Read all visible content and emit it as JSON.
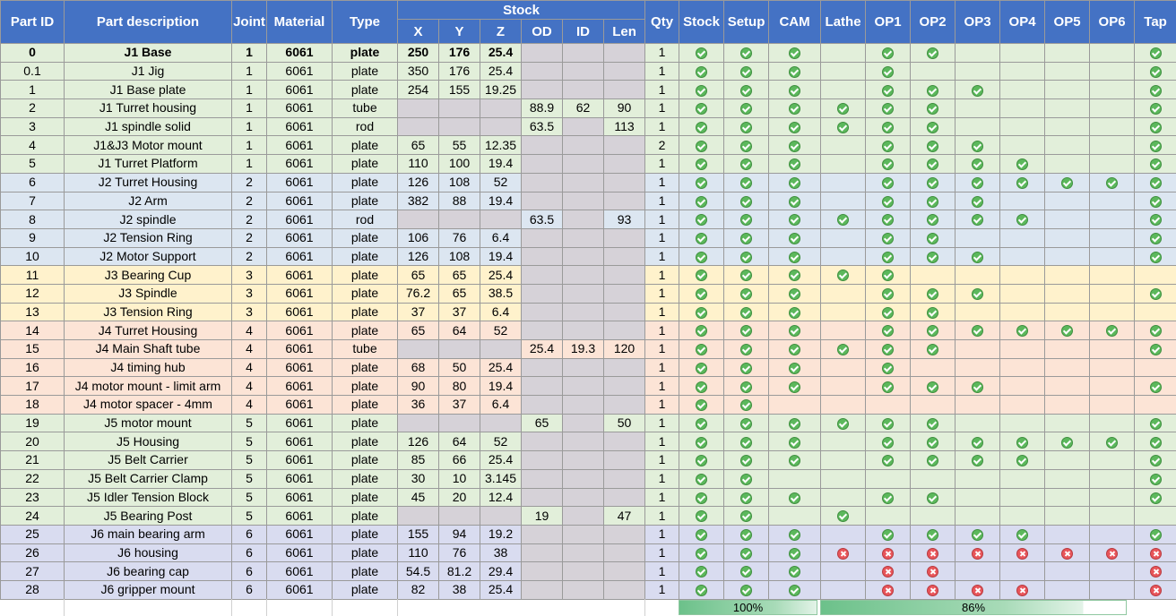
{
  "headers": {
    "part_id": "Part ID",
    "part_description": "Part description",
    "joint": "Joint",
    "material": "Material",
    "type": "Type",
    "stock_group": "Stock",
    "x": "X",
    "y": "Y",
    "z": "Z",
    "od": "OD",
    "id": "ID",
    "len": "Len",
    "qty": "Qty",
    "status_cols": [
      "Stock",
      "Setup",
      "CAM",
      "Lathe",
      "OP1",
      "OP2",
      "OP3",
      "OP4",
      "OP5",
      "OP6",
      "Tap"
    ]
  },
  "colors": {
    "header": "#4472c4",
    "joint1": "#e2efda",
    "joint2": "#dce6f1",
    "joint3": "#fff2cc",
    "joint4": "#fce4d6",
    "joint5": "#e2efda",
    "joint6": "#d9dcf0",
    "stock_missing": "#d6d2d8",
    "check_ok": "#5cb85c",
    "check_bad": "#e8555a"
  },
  "rows": [
    {
      "id": "0",
      "desc": "J1 Base",
      "joint": "1",
      "mat": "6061",
      "type": "plate",
      "x": "250",
      "y": "176",
      "z": "25.4",
      "od": "",
      "idv": "",
      "len": "",
      "qty": "1",
      "s": "ooo_oo____o",
      "bold": true
    },
    {
      "id": "0.1",
      "desc": "J1 Jig",
      "joint": "1",
      "mat": "6061",
      "type": "plate",
      "x": "350",
      "y": "176",
      "z": "25.4",
      "od": "",
      "idv": "",
      "len": "",
      "qty": "1",
      "s": "ooo_o_____o"
    },
    {
      "id": "1",
      "desc": "J1 Base plate",
      "joint": "1",
      "mat": "6061",
      "type": "plate",
      "x": "254",
      "y": "155",
      "z": "19.25",
      "od": "",
      "idv": "",
      "len": "",
      "qty": "1",
      "s": "ooo_ooo___o"
    },
    {
      "id": "2",
      "desc": "J1 Turret housing",
      "joint": "1",
      "mat": "6061",
      "type": "tube",
      "x": "",
      "y": "",
      "z": "",
      "od": "88.9",
      "idv": "62",
      "len": "90",
      "qty": "1",
      "s": "oooooo____o"
    },
    {
      "id": "3",
      "desc": "J1 spindle solid",
      "joint": "1",
      "mat": "6061",
      "type": "rod",
      "x": "",
      "y": "",
      "z": "",
      "od": "63.5",
      "idv": "",
      "len": "113",
      "qty": "1",
      "s": "oooooo____o"
    },
    {
      "id": "4",
      "desc": "J1&J3 Motor mount",
      "joint": "1",
      "mat": "6061",
      "type": "plate",
      "x": "65",
      "y": "55",
      "z": "12.35",
      "od": "",
      "idv": "",
      "len": "",
      "qty": "2",
      "s": "ooo_ooo___o"
    },
    {
      "id": "5",
      "desc": "J1 Turret Platform",
      "joint": "1",
      "mat": "6061",
      "type": "plate",
      "x": "110",
      "y": "100",
      "z": "19.4",
      "od": "",
      "idv": "",
      "len": "",
      "qty": "1",
      "s": "ooo_oooo__o"
    },
    {
      "id": "6",
      "desc": "J2 Turret Housing",
      "joint": "2",
      "mat": "6061",
      "type": "plate",
      "x": "126",
      "y": "108",
      "z": "52",
      "od": "",
      "idv": "",
      "len": "",
      "qty": "1",
      "s": "ooo_ooooooo"
    },
    {
      "id": "7",
      "desc": "J2 Arm",
      "joint": "2",
      "mat": "6061",
      "type": "plate",
      "x": "382",
      "y": "88",
      "z": "19.4",
      "od": "",
      "idv": "",
      "len": "",
      "qty": "1",
      "s": "ooo_ooo___o"
    },
    {
      "id": "8",
      "desc": "J2 spindle",
      "joint": "2",
      "mat": "6061",
      "type": "rod",
      "x": "",
      "y": "",
      "z": "",
      "od": "63.5",
      "idv": "",
      "len": "93",
      "qty": "1",
      "s": "oooooooo__o"
    },
    {
      "id": "9",
      "desc": "J2 Tension Ring",
      "joint": "2",
      "mat": "6061",
      "type": "plate",
      "x": "106",
      "y": "76",
      "z": "6.4",
      "od": "",
      "idv": "",
      "len": "",
      "qty": "1",
      "s": "ooo_oo____o",
      "redY": true
    },
    {
      "id": "10",
      "desc": "J2 Motor Support",
      "joint": "2",
      "mat": "6061",
      "type": "plate",
      "x": "126",
      "y": "108",
      "z": "19.4",
      "od": "",
      "idv": "",
      "len": "",
      "qty": "1",
      "s": "ooo_ooo___o"
    },
    {
      "id": "11",
      "desc": "J3 Bearing Cup",
      "joint": "3",
      "mat": "6061",
      "type": "plate",
      "x": "65",
      "y": "65",
      "z": "25.4",
      "od": "",
      "idv": "",
      "len": "",
      "qty": "1",
      "s": "ooooo______"
    },
    {
      "id": "12",
      "desc": "J3 Spindle",
      "joint": "3",
      "mat": "6061",
      "type": "plate",
      "x": "76.2",
      "y": "65",
      "z": "38.5",
      "od": "",
      "idv": "",
      "len": "",
      "qty": "1",
      "s": "ooo_ooo___o"
    },
    {
      "id": "13",
      "desc": "J3 Tension Ring",
      "joint": "3",
      "mat": "6061",
      "type": "plate",
      "x": "37",
      "y": "37",
      "z": "6.4",
      "od": "",
      "idv": "",
      "len": "",
      "qty": "1",
      "s": "ooo_oo_____"
    },
    {
      "id": "14",
      "desc": "J4 Turret Housing",
      "joint": "4",
      "mat": "6061",
      "type": "plate",
      "x": "65",
      "y": "64",
      "z": "52",
      "od": "",
      "idv": "",
      "len": "",
      "qty": "1",
      "s": "ooo_ooooooo"
    },
    {
      "id": "15",
      "desc": "J4 Main Shaft tube",
      "joint": "4",
      "mat": "6061",
      "type": "tube",
      "x": "",
      "y": "",
      "z": "",
      "od": "25.4",
      "idv": "19.3",
      "len": "120",
      "qty": "1",
      "s": "oooooo____o"
    },
    {
      "id": "16",
      "desc": "J4 timing hub",
      "joint": "4",
      "mat": "6061",
      "type": "plate",
      "x": "68",
      "y": "50",
      "z": "25.4",
      "od": "",
      "idv": "",
      "len": "",
      "qty": "1",
      "s": "ooo_o______"
    },
    {
      "id": "17",
      "desc": "J4 motor mount - limit arm",
      "joint": "4",
      "mat": "6061",
      "type": "plate",
      "x": "90",
      "y": "80",
      "z": "19.4",
      "od": "",
      "idv": "",
      "len": "",
      "qty": "1",
      "s": "ooo_ooo___o"
    },
    {
      "id": "18",
      "desc": "J4 motor spacer - 4mm",
      "joint": "4",
      "mat": "6061",
      "type": "plate",
      "x": "36",
      "y": "37",
      "z": "6.4",
      "od": "",
      "idv": "",
      "len": "",
      "qty": "1",
      "s": "oo_________"
    },
    {
      "id": "19",
      "desc": "J5 motor mount",
      "joint": "5",
      "mat": "6061",
      "type": "plate",
      "x": "",
      "y": "",
      "z": "",
      "od": "65",
      "idv": "",
      "len": "50",
      "qty": "1",
      "s": "oooooo____o"
    },
    {
      "id": "20",
      "desc": "J5 Housing",
      "joint": "5",
      "mat": "6061",
      "type": "plate",
      "x": "126",
      "y": "64",
      "z": "52",
      "od": "",
      "idv": "",
      "len": "",
      "qty": "1",
      "s": "ooo_ooooooo"
    },
    {
      "id": "21",
      "desc": "J5 Belt Carrier",
      "joint": "5",
      "mat": "6061",
      "type": "plate",
      "x": "85",
      "y": "66",
      "z": "25.4",
      "od": "",
      "idv": "",
      "len": "",
      "qty": "1",
      "s": "ooo_oooo__o",
      "redZ": true
    },
    {
      "id": "22",
      "desc": "J5 Belt Carrier Clamp",
      "joint": "5",
      "mat": "6061",
      "type": "plate",
      "x": "30",
      "y": "10",
      "z": "3.145",
      "od": "",
      "idv": "",
      "len": "",
      "qty": "1",
      "s": "oo________o"
    },
    {
      "id": "23",
      "desc": "J5 Idler Tension Block",
      "joint": "5",
      "mat": "6061",
      "type": "plate",
      "x": "45",
      "y": "20",
      "z": "12.4",
      "od": "",
      "idv": "",
      "len": "",
      "qty": "1",
      "s": "ooo_oo____o"
    },
    {
      "id": "24",
      "desc": "J5 Bearing Post",
      "joint": "5",
      "mat": "6061",
      "type": "plate",
      "x": "",
      "y": "",
      "z": "",
      "od": "19",
      "idv": "",
      "len": "47",
      "qty": "1",
      "s": "oo_o_______"
    },
    {
      "id": "25",
      "desc": "J6 main bearing arm",
      "joint": "6",
      "mat": "6061",
      "type": "plate",
      "x": "155",
      "y": "94",
      "z": "19.2",
      "od": "",
      "idv": "",
      "len": "",
      "qty": "1",
      "s": "ooo_oooo__o"
    },
    {
      "id": "26",
      "desc": "J6 housing",
      "joint": "6",
      "mat": "6061",
      "type": "plate",
      "x": "110",
      "y": "76",
      "z": "38",
      "od": "",
      "idv": "",
      "len": "",
      "qty": "1",
      "s": "oooxxxxxxxx"
    },
    {
      "id": "27",
      "desc": "J6 bearing cap",
      "joint": "6",
      "mat": "6061",
      "type": "plate",
      "x": "54.5",
      "y": "81.2",
      "z": "29.4",
      "od": "",
      "idv": "",
      "len": "",
      "qty": "1",
      "s": "ooo_xx____x"
    },
    {
      "id": "28",
      "desc": "J6 gripper mount",
      "joint": "6",
      "mat": "6061",
      "type": "plate",
      "x": "82",
      "y": "38",
      "z": "25.4",
      "od": "",
      "idv": "",
      "len": "",
      "qty": "1",
      "s": "ooo_xxxx__x"
    }
  ],
  "summary": {
    "bar1_label": "100%",
    "bar1_value": 100,
    "bar2_label": "86%",
    "bar2_value": 86
  }
}
